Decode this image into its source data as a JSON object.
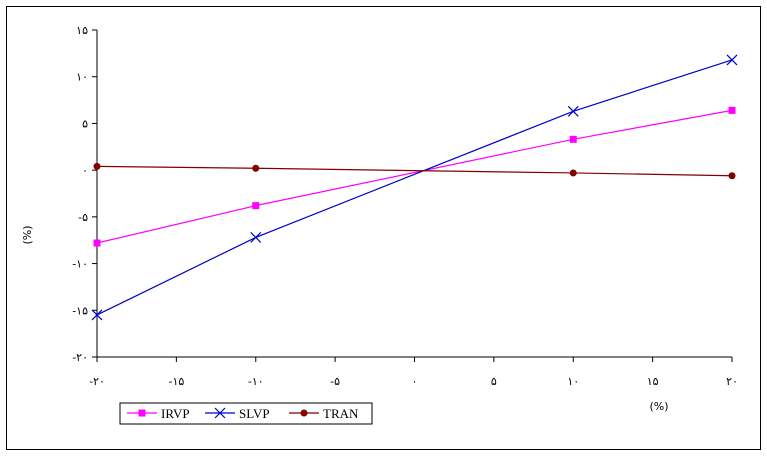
{
  "chart_data": {
    "type": "line",
    "title": "",
    "xlabel": "(%)",
    "ylabel": "(%)",
    "xlim": [
      -20,
      20
    ],
    "ylim": [
      -20,
      15
    ],
    "x_ticks": [
      -20,
      -15,
      -10,
      -5,
      0,
      5,
      10,
      15,
      20
    ],
    "x_tick_labels": [
      "-۲۰",
      "-۱۵",
      "-۱۰",
      "-۵",
      "۰",
      "۵",
      "۱۰",
      "۱۵",
      "۲۰"
    ],
    "y_ticks": [
      15,
      10,
      5,
      0,
      -5,
      -10,
      -15,
      -20
    ],
    "y_tick_labels": [
      "۱۵",
      "۱۰",
      "۵",
      "۰",
      "-۵",
      "-۱۰",
      "-۱۵",
      "-۲۰"
    ],
    "grid": false,
    "legend_position": "bottom-left",
    "series": [
      {
        "name": "IRVP",
        "color": "#ff00ff",
        "marker": "square",
        "x": [
          -20,
          -10,
          10,
          20
        ],
        "y": [
          -7.8,
          -3.8,
          3.3,
          6.4
        ]
      },
      {
        "name": "SLVP",
        "color": "#0000cc",
        "marker": "x",
        "x": [
          -20,
          -10,
          10,
          20
        ],
        "y": [
          -15.5,
          -7.2,
          6.3,
          11.8
        ]
      },
      {
        "name": "TRAN",
        "color": "#800000",
        "marker": "circle",
        "x": [
          -20,
          -10,
          10,
          20
        ],
        "y": [
          0.4,
          0.2,
          -0.3,
          -0.6
        ]
      }
    ]
  }
}
